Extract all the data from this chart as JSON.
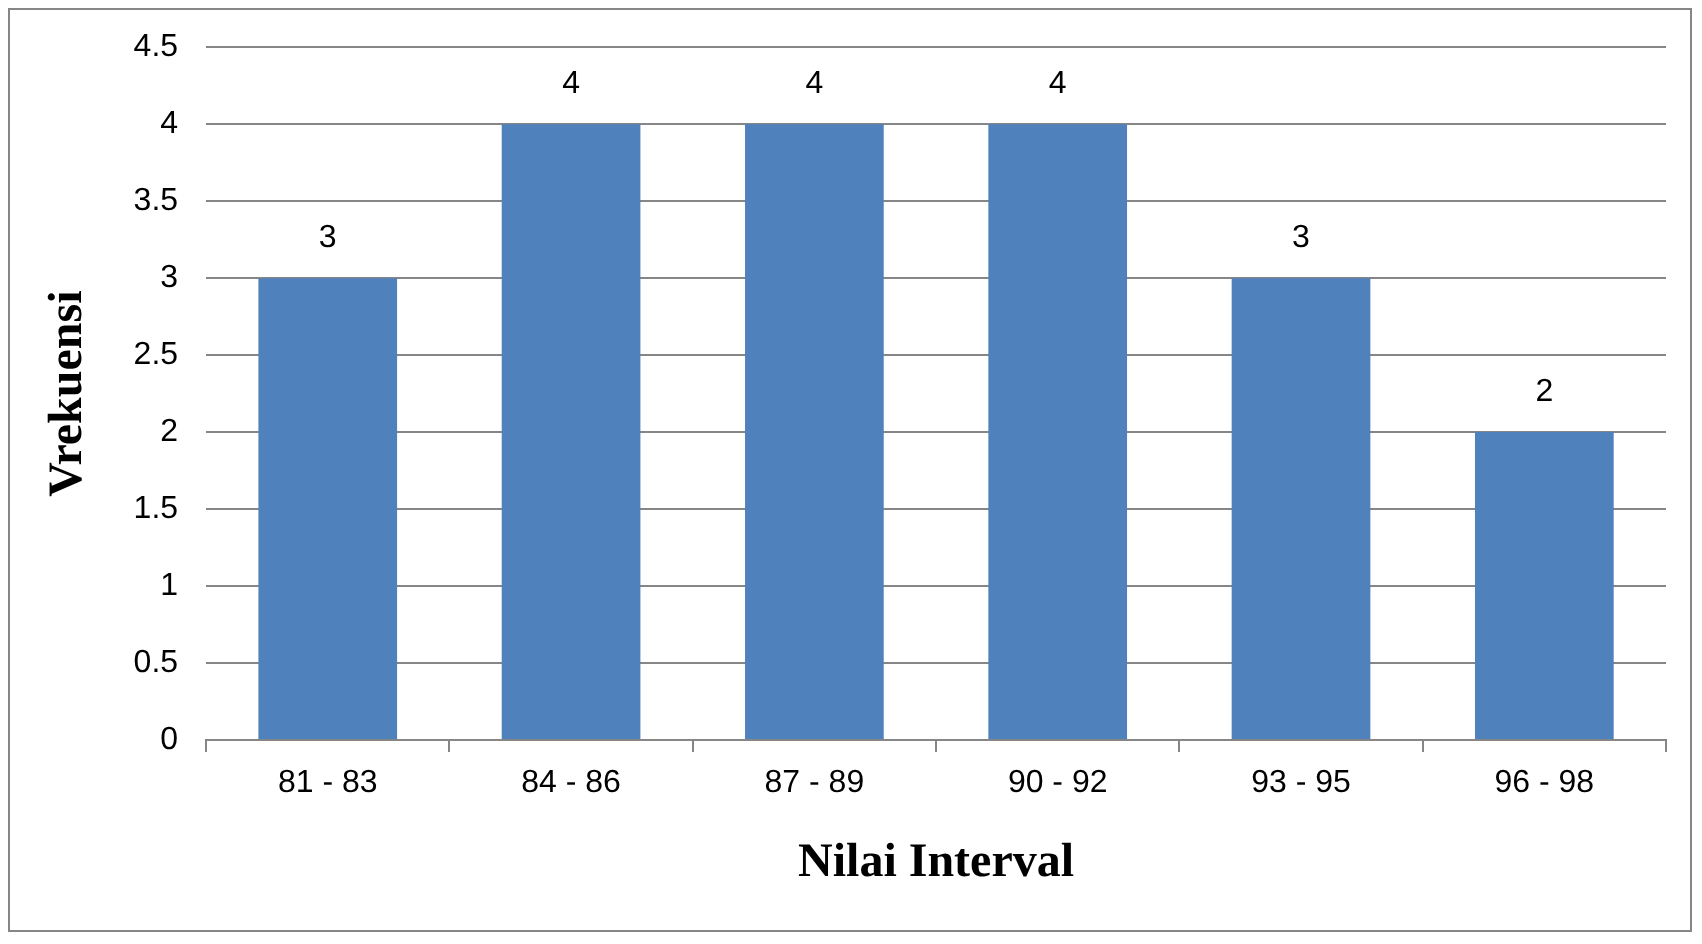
{
  "chart_data": {
    "type": "bar",
    "xlabel": "Nilai Interval",
    "ylabel": "Vrekuensi",
    "categories": [
      "81 - 83",
      "84 - 86",
      "87 - 89",
      "90 - 92",
      "93 - 95",
      "96 - 98"
    ],
    "values": [
      3,
      4,
      4,
      4,
      3,
      2
    ],
    "color": "#4f81bd",
    "ylim": [
      0,
      4.5
    ],
    "yticks": [
      0,
      0.5,
      1,
      1.5,
      2,
      2.5,
      3,
      3.5,
      4,
      4.5
    ],
    "grid": "y",
    "data_labels": true
  }
}
